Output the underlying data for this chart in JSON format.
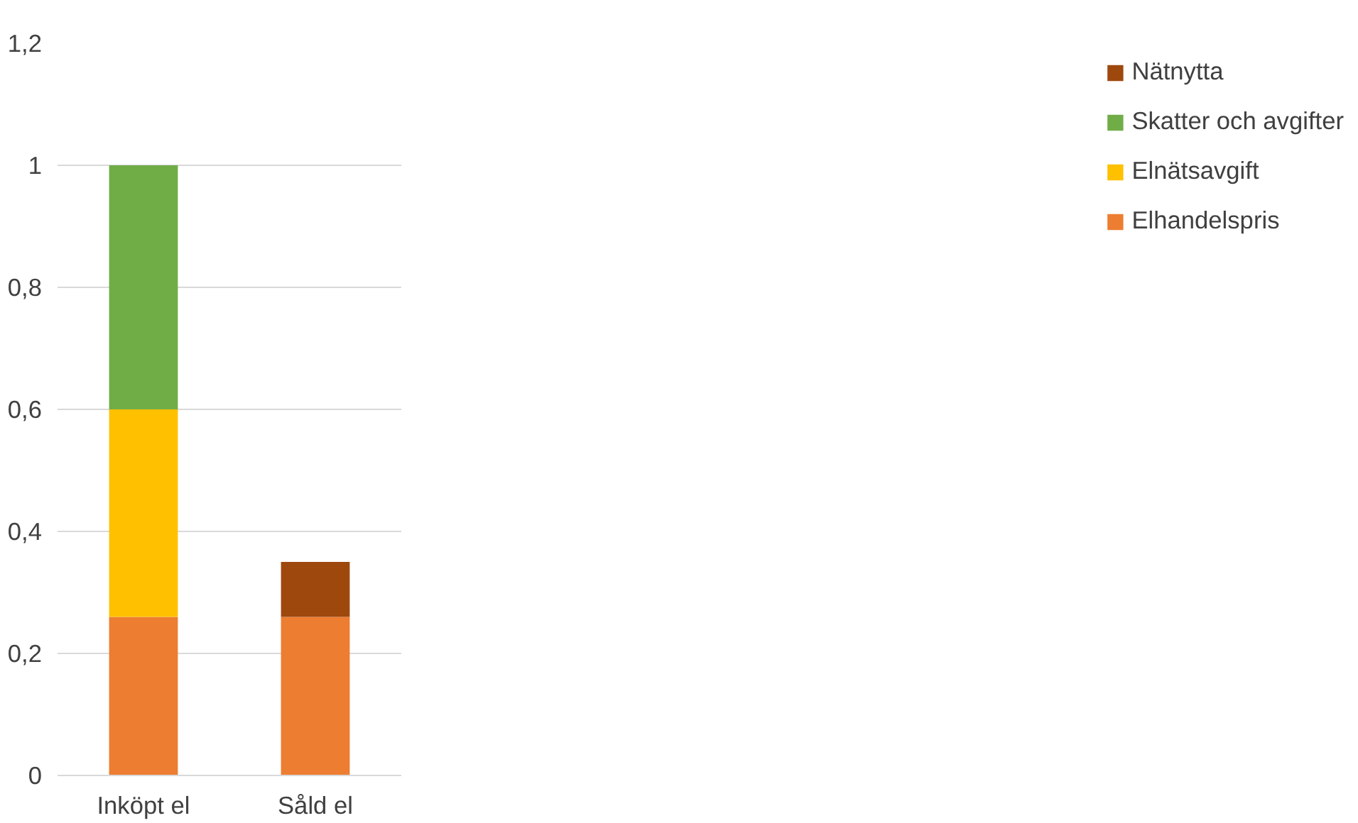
{
  "chart_data": {
    "type": "bar",
    "stacked": true,
    "categories": [
      "Inköpt el",
      "Såld el"
    ],
    "series": [
      {
        "name": "Elhandelspris",
        "color": "#ed7d31",
        "values": [
          0.26,
          0.26
        ]
      },
      {
        "name": "Elnätsavgift",
        "color": "#ffc000",
        "values": [
          0.34,
          null
        ]
      },
      {
        "name": "Skatter och avgifter",
        "color": "#70ad47",
        "values": [
          0.4,
          null
        ]
      },
      {
        "name": "Nätnytta",
        "color": "#9e480e",
        "values": [
          null,
          0.09
        ]
      }
    ],
    "ylim": [
      0,
      1.2
    ],
    "yticks": [
      0,
      {
        "value": 0.2,
        "label": "0,2"
      },
      {
        "value": 0.4,
        "label": "0,4"
      },
      {
        "value": 0.6,
        "label": "0,6"
      },
      {
        "value": 0.8,
        "label": "0,8"
      },
      1,
      {
        "value": 1.2,
        "label": "1,2"
      }
    ],
    "grid": "y",
    "legend": "right"
  }
}
